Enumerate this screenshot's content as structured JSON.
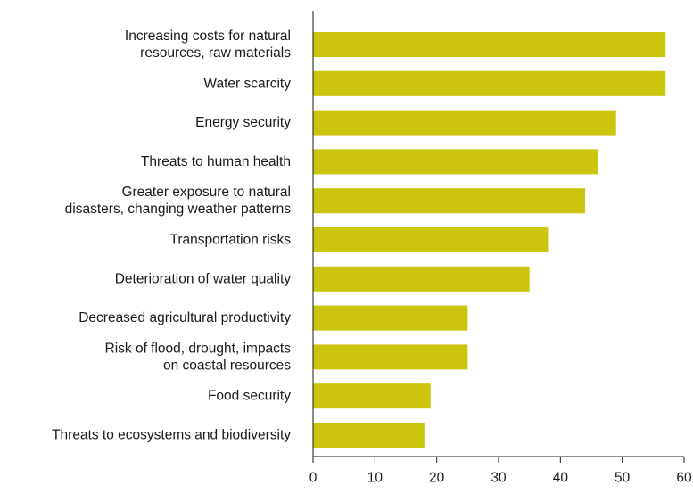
{
  "chart_data": {
    "type": "bar",
    "orientation": "horizontal",
    "categories": [
      [
        "Increasing costs for natural",
        "resources, raw materials"
      ],
      [
        "Water scarcity"
      ],
      [
        "Energy security"
      ],
      [
        "Threats to human health"
      ],
      [
        "Greater exposure to natural",
        "disasters, changing weather patterns"
      ],
      [
        "Transportation risks"
      ],
      [
        "Deterioration of water quality"
      ],
      [
        "Decreased agricultural productivity"
      ],
      [
        "Risk of flood, drought, impacts",
        "on coastal resources"
      ],
      [
        "Food security"
      ],
      [
        "Threats to ecosystems and biodiversity"
      ]
    ],
    "values": [
      57,
      57,
      49,
      46,
      44,
      38,
      35,
      25,
      25,
      19,
      18
    ],
    "xlim": [
      0,
      60
    ],
    "xticks": [
      0,
      10,
      20,
      30,
      40,
      50,
      60
    ],
    "title": "",
    "xlabel": "",
    "ylabel": "",
    "grid": false,
    "bar_color": "#cbc60d",
    "axis_color": "#1a1a1a"
  }
}
